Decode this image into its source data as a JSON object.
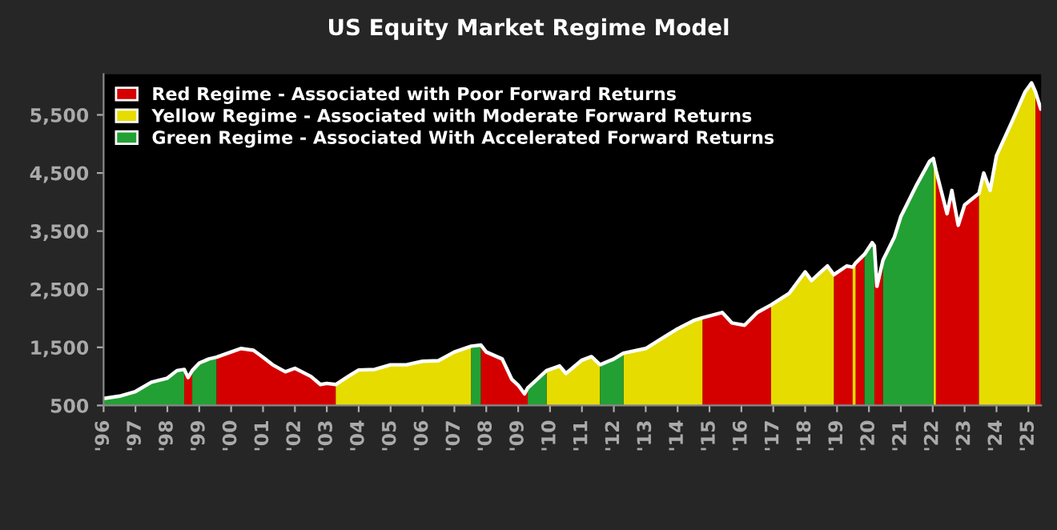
{
  "chart_data": {
    "type": "area",
    "title": "US Equity Market Regime Model",
    "x": [
      1996.0,
      1996.5,
      1997.0,
      1997.5,
      1998.0,
      1998.3,
      1998.53,
      1998.65,
      1998.78,
      1999.0,
      1999.3,
      1999.54,
      2000.0,
      2000.3,
      2000.7,
      2001.0,
      2001.3,
      2001.7,
      2002.0,
      2002.5,
      2002.8,
      2003.0,
      2003.28,
      2003.7,
      2004.0,
      2004.5,
      2005.0,
      2005.5,
      2006.0,
      2006.5,
      2007.0,
      2007.53,
      2007.83,
      2008.0,
      2008.5,
      2008.8,
      2009.0,
      2009.2,
      2009.3,
      2009.89,
      2010.3,
      2010.5,
      2011.0,
      2011.3,
      2011.57,
      2012.0,
      2012.3,
      2013.0,
      2013.5,
      2014.0,
      2014.5,
      2014.78,
      2015.4,
      2015.7,
      2016.1,
      2016.5,
      2016.93,
      2017.5,
      2018.0,
      2018.2,
      2018.7,
      2018.9,
      2019.3,
      2019.49,
      2019.58,
      2019.86,
      2020.1,
      2020.17,
      2020.25,
      2020.44,
      2020.8,
      2021.0,
      2021.5,
      2021.9,
      2022.02,
      2022.1,
      2022.45,
      2022.6,
      2022.8,
      2023.0,
      2023.45,
      2023.6,
      2023.8,
      2024.0,
      2024.5,
      2024.9,
      2025.1,
      2025.22,
      2025.39
    ],
    "series": [
      {
        "name": "Red Regime - Associated with Poor Forward Returns",
        "color": "#d40000",
        "values": [
          null,
          null,
          null,
          null,
          null,
          null,
          1120,
          980,
          1100,
          null,
          null,
          1330,
          1420,
          1480,
          1450,
          1330,
          1200,
          1080,
          1140,
          1000,
          860,
          880,
          860,
          null,
          null,
          null,
          null,
          null,
          null,
          null,
          null,
          null,
          1540,
          1420,
          1300,
          950,
          850,
          700,
          800,
          null,
          null,
          null,
          null,
          null,
          null,
          null,
          null,
          null,
          null,
          null,
          null,
          2010,
          2100,
          1920,
          1880,
          2100,
          2230,
          null,
          null,
          null,
          null,
          2750,
          2900,
          2880,
          2950,
          3100,
          null,
          3250,
          2550,
          3000,
          null,
          null,
          null,
          null,
          null,
          4550,
          3800,
          4200,
          3600,
          3950,
          4150,
          null,
          null,
          null,
          null,
          null,
          null,
          5900,
          5600
        ]
      },
      {
        "name": "Yellow Regime - Associated with Moderate Forward Returns",
        "color": "#e6dc00",
        "values": [
          null,
          null,
          null,
          null,
          null,
          null,
          null,
          null,
          null,
          null,
          null,
          null,
          null,
          null,
          null,
          null,
          null,
          null,
          null,
          null,
          null,
          null,
          860,
          1010,
          1110,
          1120,
          1200,
          1200,
          1260,
          1270,
          1420,
          1520,
          null,
          null,
          null,
          null,
          null,
          null,
          null,
          1100,
          1180,
          1050,
          1280,
          1340,
          1200,
          null,
          1400,
          1480,
          1650,
          1820,
          1960,
          2010,
          null,
          null,
          null,
          null,
          2230,
          2430,
          2800,
          2650,
          2900,
          2750,
          null,
          2880,
          2950,
          null,
          null,
          null,
          null,
          null,
          null,
          null,
          null,
          null,
          4750,
          4550,
          null,
          null,
          null,
          null,
          4150,
          4500,
          4200,
          4800,
          5400,
          5900,
          6050,
          5900,
          null
        ]
      },
      {
        "name": "Green Regime - Associated With Accelerated Forward Returns",
        "color": "#22a034",
        "values": [
          620,
          660,
          740,
          900,
          970,
          1100,
          1120,
          null,
          1100,
          1230,
          1300,
          1330,
          null,
          null,
          null,
          null,
          null,
          null,
          null,
          null,
          null,
          null,
          null,
          null,
          null,
          null,
          null,
          null,
          null,
          null,
          null,
          1520,
          1540,
          null,
          null,
          null,
          null,
          null,
          800,
          1100,
          null,
          null,
          null,
          null,
          1200,
          1300,
          1400,
          null,
          null,
          null,
          null,
          null,
          null,
          null,
          null,
          null,
          null,
          null,
          null,
          null,
          null,
          null,
          null,
          null,
          null,
          3100,
          3300,
          3250,
          null,
          3000,
          3400,
          3750,
          4300,
          4700,
          4750,
          null,
          null,
          null,
          null,
          null,
          null,
          null,
          null,
          null,
          null,
          null,
          null,
          null,
          null
        ]
      },
      {
        "type": "line",
        "color": "#ffffff",
        "values": [
          620,
          660,
          740,
          900,
          970,
          1100,
          1120,
          980,
          1100,
          1230,
          1300,
          1330,
          1420,
          1480,
          1450,
          1330,
          1200,
          1080,
          1140,
          1000,
          860,
          880,
          860,
          1010,
          1110,
          1120,
          1200,
          1200,
          1260,
          1270,
          1420,
          1520,
          1540,
          1420,
          1300,
          950,
          850,
          700,
          800,
          1100,
          1180,
          1050,
          1280,
          1340,
          1200,
          1300,
          1400,
          1480,
          1650,
          1820,
          1960,
          2010,
          2100,
          1920,
          1880,
          2100,
          2230,
          2430,
          2800,
          2650,
          2900,
          2750,
          2900,
          2880,
          2950,
          3100,
          3300,
          3250,
          2550,
          3000,
          3400,
          3750,
          4300,
          4700,
          4750,
          4550,
          3800,
          4200,
          3600,
          3950,
          4150,
          4500,
          4200,
          4800,
          5400,
          5900,
          6050,
          5900,
          5600
        ]
      }
    ],
    "xlim": [
      1996.0,
      2025.4
    ],
    "xticks": [
      {
        "value": 1996,
        "label": "'96"
      },
      {
        "value": 1997,
        "label": "'97"
      },
      {
        "value": 1998,
        "label": "'98"
      },
      {
        "value": 1999,
        "label": "'99"
      },
      {
        "value": 2000,
        "label": "'00"
      },
      {
        "value": 2001,
        "label": "'01"
      },
      {
        "value": 2002,
        "label": "'02"
      },
      {
        "value": 2003,
        "label": "'03"
      },
      {
        "value": 2004,
        "label": "'04"
      },
      {
        "value": 2005,
        "label": "'05"
      },
      {
        "value": 2006,
        "label": "'06"
      },
      {
        "value": 2007,
        "label": "'07"
      },
      {
        "value": 2008,
        "label": "'08"
      },
      {
        "value": 2009,
        "label": "'09"
      },
      {
        "value": 2010,
        "label": "'10"
      },
      {
        "value": 2011,
        "label": "'11"
      },
      {
        "value": 2012,
        "label": "'12"
      },
      {
        "value": 2013,
        "label": "'13"
      },
      {
        "value": 2014,
        "label": "'14"
      },
      {
        "value": 2015,
        "label": "'15"
      },
      {
        "value": 2016,
        "label": "'16"
      },
      {
        "value": 2017,
        "label": "'17"
      },
      {
        "value": 2018,
        "label": "'18"
      },
      {
        "value": 2019,
        "label": "'19"
      },
      {
        "value": 2020,
        "label": "'20"
      },
      {
        "value": 2021,
        "label": "'21"
      },
      {
        "value": 2022,
        "label": "'22"
      },
      {
        "value": 2023,
        "label": "'23"
      },
      {
        "value": 2024,
        "label": "'24"
      },
      {
        "value": 2025,
        "label": "'25"
      }
    ],
    "ylim": [
      500,
      6200
    ],
    "yticks": [
      500,
      {
        "value": 1500,
        "label": "1,500"
      },
      {
        "value": 2500,
        "label": "2,500"
      },
      {
        "value": 3500,
        "label": "3,500"
      },
      {
        "value": 4500,
        "label": "4,500"
      },
      {
        "value": 5500,
        "label": "5,500"
      }
    ],
    "grid": false,
    "legend": "top left"
  }
}
